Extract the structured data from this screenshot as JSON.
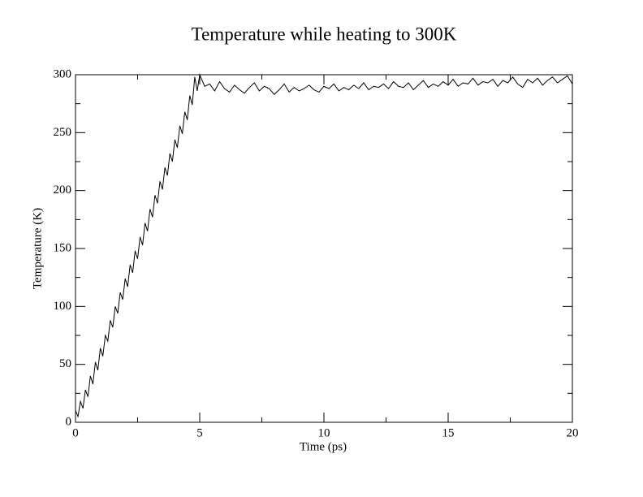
{
  "chart_data": {
    "type": "line",
    "title": "Temperature while heating to 300K",
    "x_label": "Time (ps)",
    "y_label": "Temperature (K)",
    "xlim": [
      0,
      20
    ],
    "ylim": [
      0,
      300
    ],
    "xticks": [
      0,
      5,
      10,
      15,
      20
    ],
    "yticks": [
      0,
      50,
      100,
      150,
      200,
      250,
      300
    ],
    "x_minor_ticks": [
      2.5,
      7.5,
      12.5,
      17.5
    ],
    "y_minor_ticks": [
      25,
      75,
      125,
      175,
      225,
      275
    ],
    "series": [
      {
        "color": "#000000",
        "x": [
          0,
          0.1,
          0.2,
          0.3,
          0.4,
          0.5,
          0.6,
          0.7,
          0.8,
          0.9,
          1.0,
          1.1,
          1.2,
          1.3,
          1.4,
          1.5,
          1.6,
          1.7,
          1.8,
          1.9,
          2.0,
          2.1,
          2.2,
          2.3,
          2.4,
          2.5,
          2.6,
          2.7,
          2.8,
          2.9,
          3.0,
          3.1,
          3.2,
          3.3,
          3.4,
          3.5,
          3.6,
          3.7,
          3.8,
          3.9,
          4.0,
          4.1,
          4.2,
          4.3,
          4.4,
          4.5,
          4.6,
          4.7,
          4.8,
          4.9,
          5.0,
          5.2,
          5.4,
          5.6,
          5.8,
          6.0,
          6.2,
          6.4,
          6.6,
          6.8,
          7.0,
          7.2,
          7.4,
          7.6,
          7.8,
          8.0,
          8.2,
          8.4,
          8.6,
          8.8,
          9.0,
          9.2,
          9.4,
          9.6,
          9.8,
          10.0,
          10.2,
          10.4,
          10.6,
          10.8,
          11.0,
          11.2,
          11.4,
          11.6,
          11.8,
          12.0,
          12.2,
          12.4,
          12.6,
          12.8,
          13.0,
          13.2,
          13.4,
          13.6,
          13.8,
          14.0,
          14.2,
          14.4,
          14.6,
          14.8,
          15.0,
          15.2,
          15.4,
          15.6,
          15.8,
          16.0,
          16.2,
          16.4,
          16.6,
          16.8,
          17.0,
          17.2,
          17.4,
          17.6,
          17.8,
          18.0,
          18.2,
          18.4,
          18.6,
          18.8,
          19.0,
          19.2,
          19.4,
          19.6,
          19.8,
          20.0
        ],
        "values": [
          10,
          5,
          18,
          12,
          28,
          22,
          40,
          33,
          52,
          45,
          64,
          57,
          75,
          70,
          88,
          82,
          100,
          94,
          112,
          106,
          124,
          117,
          136,
          129,
          148,
          141,
          160,
          153,
          172,
          165,
          184,
          177,
          196,
          189,
          208,
          201,
          220,
          213,
          232,
          225,
          244,
          237,
          256,
          249,
          268,
          261,
          282,
          274,
          298,
          286,
          300,
          290,
          292,
          286,
          294,
          288,
          285,
          291,
          287,
          284,
          289,
          293,
          286,
          290,
          288,
          283,
          287,
          292,
          285,
          289,
          286,
          288,
          291,
          287,
          285,
          290,
          288,
          292,
          286,
          289,
          287,
          291,
          288,
          293,
          287,
          290,
          289,
          292,
          288,
          294,
          290,
          289,
          293,
          287,
          291,
          295,
          289,
          292,
          290,
          294,
          291,
          296,
          290,
          293,
          292,
          297,
          291,
          294,
          293,
          296,
          290,
          295,
          293,
          298,
          292,
          289,
          296,
          293,
          297,
          291,
          295,
          298,
          293,
          296,
          299,
          292
        ]
      }
    ]
  }
}
